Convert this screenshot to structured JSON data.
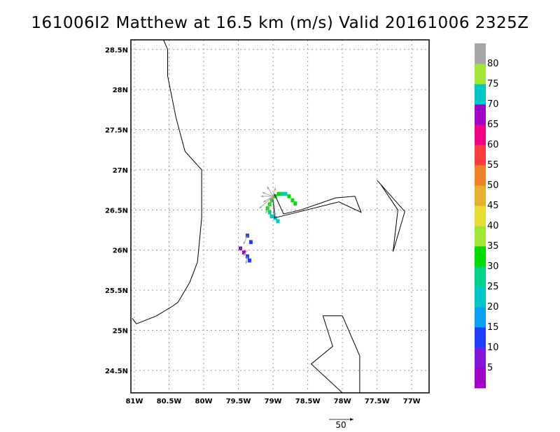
{
  "title": "161006I2 Matthew at 16.5 km (m/s) Valid 20161006 2325Z",
  "map": {
    "lon_range": [
      -81.05,
      -76.75
    ],
    "lat_range": [
      24.22,
      28.62
    ],
    "grid": true,
    "x_ticks": [
      {
        "v": -81.0,
        "label": "81W"
      },
      {
        "v": -80.5,
        "label": "80.5W"
      },
      {
        "v": -80.0,
        "label": "80W"
      },
      {
        "v": -79.5,
        "label": "79.5W"
      },
      {
        "v": -79.0,
        "label": "79W"
      },
      {
        "v": -78.5,
        "label": "78.5W"
      },
      {
        "v": -78.0,
        "label": "78W"
      },
      {
        "v": -77.5,
        "label": "77.5W"
      },
      {
        "v": -77.0,
        "label": "77W"
      }
    ],
    "y_ticks": [
      {
        "v": 28.5,
        "label": "28.5N"
      },
      {
        "v": 28.0,
        "label": "28N"
      },
      {
        "v": 27.5,
        "label": "27.5N"
      },
      {
        "v": 27.0,
        "label": "27N"
      },
      {
        "v": 26.5,
        "label": "26.5N"
      },
      {
        "v": 26.0,
        "label": "26N"
      },
      {
        "v": 25.5,
        "label": "25.5N"
      },
      {
        "v": 25.0,
        "label": "25N"
      },
      {
        "v": 24.5,
        "label": "24.5N"
      }
    ]
  },
  "coastlines": [
    [
      [
        -80.58,
        28.62
      ],
      [
        -80.52,
        28.5
      ],
      [
        -80.52,
        28.17
      ],
      [
        -80.4,
        27.65
      ],
      [
        -80.27,
        27.23
      ],
      [
        -80.03,
        27.0
      ],
      [
        -80.03,
        26.4
      ],
      [
        -80.09,
        25.85
      ],
      [
        -80.2,
        25.6
      ],
      [
        -80.37,
        25.35
      ],
      [
        -80.45,
        25.3
      ],
      [
        -80.68,
        25.18
      ],
      [
        -80.97,
        25.08
      ],
      [
        -81.03,
        25.15
      ]
    ],
    [
      [
        -78.98,
        26.7
      ],
      [
        -78.85,
        26.45
      ],
      [
        -78.6,
        26.5
      ],
      [
        -78.1,
        26.65
      ],
      [
        -77.82,
        26.67
      ],
      [
        -77.73,
        26.47
      ],
      [
        -78.05,
        26.6
      ],
      [
        -78.98,
        26.4
      ],
      [
        -79.0,
        26.67
      ]
    ],
    [
      [
        -77.5,
        26.87
      ],
      [
        -77.1,
        26.48
      ],
      [
        -77.27,
        25.98
      ],
      [
        -77.2,
        26.5
      ],
      [
        -77.45,
        26.82
      ]
    ],
    [
      [
        -78.28,
        25.18
      ],
      [
        -78.14,
        24.8
      ],
      [
        -78.45,
        24.58
      ],
      [
        -78.0,
        24.22
      ]
    ],
    [
      [
        -78.0,
        25.18
      ],
      [
        -77.75,
        24.68
      ],
      [
        -77.75,
        24.22
      ]
    ],
    [
      [
        -78.28,
        25.18
      ],
      [
        -78.0,
        25.18
      ]
    ]
  ],
  "colorbar": {
    "labels": [
      "5",
      "10",
      "15",
      "20",
      "25",
      "30",
      "35",
      "40",
      "45",
      "50",
      "55",
      "60",
      "65",
      "70",
      "75",
      "80"
    ],
    "colors": [
      "#a000c8",
      "#8214dc",
      "#1e3cff",
      "#0ba0f5",
      "#00c8c8",
      "#00d28c",
      "#00dc00",
      "#a0e632",
      "#e6dc32",
      "#e6af2d",
      "#f08228",
      "#fa3c3c",
      "#f00082",
      "#a000c8",
      "#00c8c8",
      "#a0e632",
      "#a6a6a6"
    ]
  },
  "wind_pixels": [
    {
      "lon": -79.37,
      "lat": 26.18,
      "color": "#1e3cff"
    },
    {
      "lon": -79.32,
      "lat": 26.1,
      "color": "#1e3cff"
    },
    {
      "lon": -79.47,
      "lat": 26.02,
      "color": "#8214dc"
    },
    {
      "lon": -79.42,
      "lat": 25.97,
      "color": "#a000c8"
    },
    {
      "lon": -79.37,
      "lat": 25.92,
      "color": "#1e3cff"
    },
    {
      "lon": -79.34,
      "lat": 25.87,
      "color": "#1e3cff"
    },
    {
      "lon": -79.08,
      "lat": 26.52,
      "color": "#00dc00"
    },
    {
      "lon": -79.05,
      "lat": 26.57,
      "color": "#00dc00"
    },
    {
      "lon": -79.02,
      "lat": 26.62,
      "color": "#00dc00"
    },
    {
      "lon": -79.05,
      "lat": 26.47,
      "color": "#00d28c"
    },
    {
      "lon": -79.02,
      "lat": 26.42,
      "color": "#00c8c8"
    },
    {
      "lon": -78.97,
      "lat": 26.4,
      "color": "#00c8c8"
    },
    {
      "lon": -78.93,
      "lat": 26.36,
      "color": "#00c8c8"
    },
    {
      "lon": -78.97,
      "lat": 26.67,
      "color": "#00dc00"
    },
    {
      "lon": -78.92,
      "lat": 26.7,
      "color": "#00dc00"
    },
    {
      "lon": -78.87,
      "lat": 26.7,
      "color": "#00d28c"
    },
    {
      "lon": -78.82,
      "lat": 26.7,
      "color": "#00c8c8"
    },
    {
      "lon": -78.77,
      "lat": 26.67,
      "color": "#00dc00"
    },
    {
      "lon": -78.72,
      "lat": 26.62,
      "color": "#00dc00"
    },
    {
      "lon": -78.68,
      "lat": 26.58,
      "color": "#00dc00"
    }
  ],
  "vectors": [
    {
      "lon": -79.0,
      "lat": 26.67,
      "u": -25,
      "v": 0
    },
    {
      "lon": -79.0,
      "lat": 26.67,
      "u": -22,
      "v": 8
    },
    {
      "lon": -79.0,
      "lat": 26.67,
      "u": -12,
      "v": 20
    },
    {
      "lon": -79.0,
      "lat": 26.67,
      "u": 5,
      "v": 18
    },
    {
      "lon": -79.0,
      "lat": 26.67,
      "u": -20,
      "v": -12
    },
    {
      "lon": -79.0,
      "lat": 26.67,
      "u": -28,
      "v": -25
    },
    {
      "lon": -79.0,
      "lat": 26.67,
      "u": -15,
      "v": -35
    },
    {
      "lon": -79.0,
      "lat": 26.67,
      "u": 5,
      "v": -40
    },
    {
      "lon": -79.37,
      "lat": 26.18,
      "u": -8,
      "v": -18
    },
    {
      "lon": -79.37,
      "lat": 26.0,
      "u": -8,
      "v": -12
    },
    {
      "lon": -79.37,
      "lat": 25.92,
      "u": -3,
      "v": -15
    }
  ],
  "reference_vector": {
    "label": "50"
  }
}
